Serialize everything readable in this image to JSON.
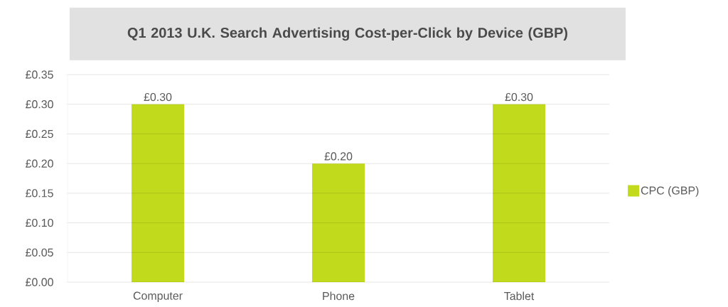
{
  "chart_data": {
    "type": "bar",
    "title": "Q1 2013 U.K. Search Advertising Cost-per-Click by Device (GBP)",
    "categories": [
      "Computer",
      "Phone",
      "Tablet"
    ],
    "series": [
      {
        "name": "CPC (GBP)",
        "color": "#c2da1c",
        "values": [
          0.3,
          0.2,
          0.3
        ],
        "value_labels": [
          "£0.30",
          "£0.20",
          "£0.30"
        ]
      }
    ],
    "ylim": [
      0,
      0.35
    ],
    "yticks": [
      {
        "value": 0,
        "label": "£0.00"
      },
      {
        "value": 0.05,
        "label": "£0.05"
      },
      {
        "value": 0.1,
        "label": "£0.10"
      },
      {
        "value": 0.15,
        "label": "£0.15"
      },
      {
        "value": 0.2,
        "label": "£0.20"
      },
      {
        "value": 0.25,
        "label": "£0.25"
      },
      {
        "value": 0.3,
        "label": "£0.30"
      },
      {
        "value": 0.35,
        "label": "£0.35"
      }
    ],
    "grid": "y",
    "legend": "right"
  }
}
